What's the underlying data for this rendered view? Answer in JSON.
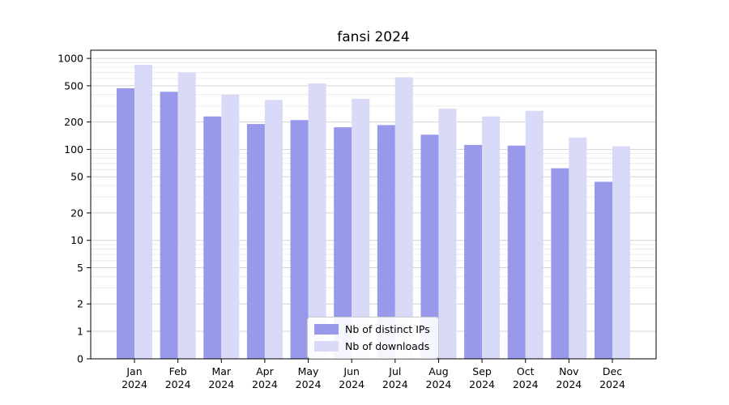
{
  "chart_data": {
    "type": "bar",
    "title": "fansi 2024",
    "categories": [
      "Jan",
      "Feb",
      "Mar",
      "Apr",
      "May",
      "Jun",
      "Jul",
      "Aug",
      "Sep",
      "Oct",
      "Nov",
      "Dec"
    ],
    "year_label": "2024",
    "xlabel": "",
    "ylabel": "",
    "scale": "symlog",
    "grid": "on",
    "legend_position": "bottom-center",
    "yticks": [
      0,
      1,
      2,
      5,
      10,
      20,
      50,
      100,
      200,
      500,
      1000
    ],
    "ylim": [
      0,
      1100
    ],
    "series": [
      {
        "name": "Nb of distinct IPs",
        "color": "#9999ec",
        "values": [
          470,
          430,
          230,
          190,
          210,
          175,
          185,
          145,
          112,
          110,
          62,
          44
        ]
      },
      {
        "name": "Nb of downloads",
        "color": "#d9d9f8",
        "values": [
          850,
          700,
          400,
          350,
          530,
          360,
          620,
          280,
          230,
          265,
          135,
          108
        ]
      }
    ]
  }
}
